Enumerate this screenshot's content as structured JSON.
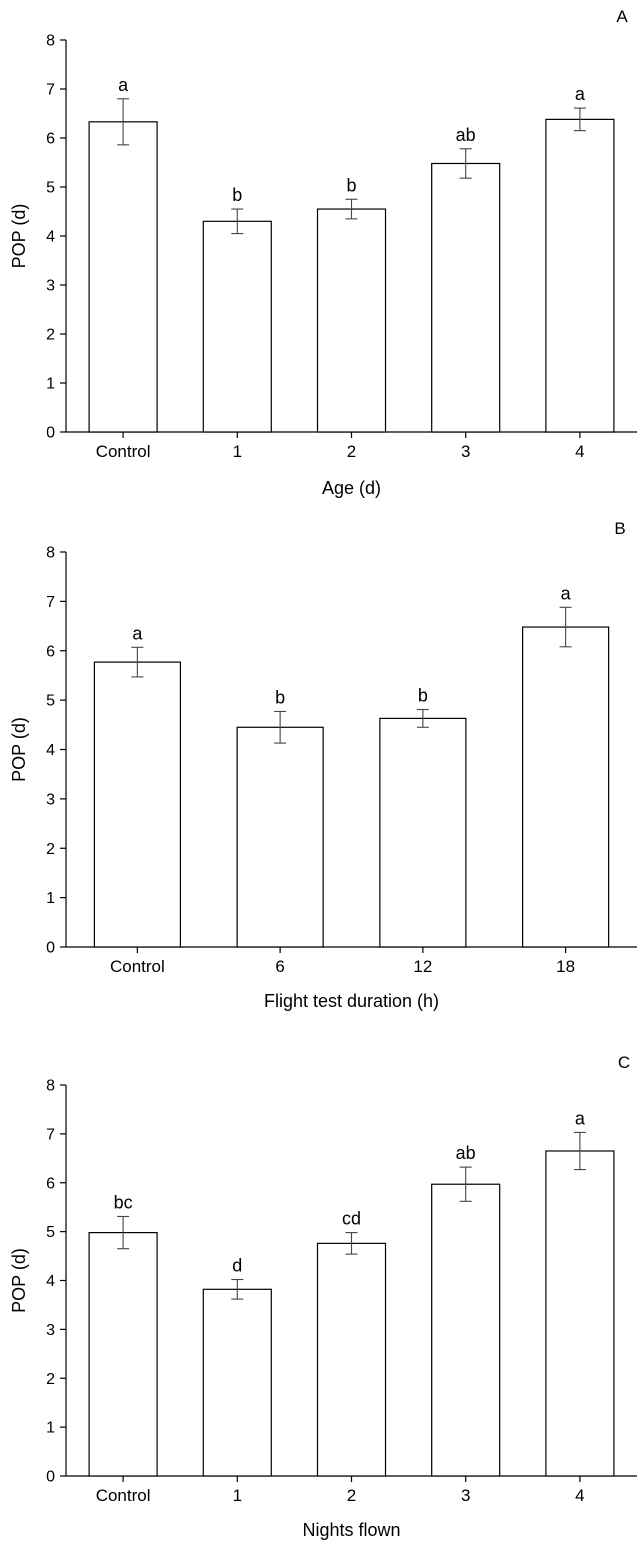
{
  "chart_data": [
    {
      "type": "bar",
      "panel_label": "A",
      "categories": [
        "Control",
        "1",
        "2",
        "3",
        "4"
      ],
      "values": [
        6.33,
        4.3,
        4.55,
        5.48,
        6.38
      ],
      "errors": [
        0.47,
        0.25,
        0.2,
        0.3,
        0.23
      ],
      "significance_letters": [
        "a",
        "b",
        "b",
        "ab",
        "a"
      ],
      "xlabel": "Age (d)",
      "ylabel": "POP (d)",
      "ylim": [
        0,
        8
      ],
      "yticks": [
        "0",
        "1",
        "2",
        "3",
        "4",
        "5",
        "6",
        "7",
        "8"
      ],
      "grid": false,
      "bar_color": "#ffffff",
      "edge_color": "#000000"
    },
    {
      "type": "bar",
      "panel_label": "B",
      "categories": [
        "Control",
        "6",
        "12",
        "18"
      ],
      "values": [
        5.77,
        4.45,
        4.63,
        6.48
      ],
      "errors": [
        0.3,
        0.32,
        0.18,
        0.4
      ],
      "significance_letters": [
        "a",
        "b",
        "b",
        "a"
      ],
      "xlabel": "Flight test duration (h)",
      "ylabel": "POP (d)",
      "ylim": [
        0,
        8
      ],
      "yticks": [
        "0",
        "1",
        "2",
        "3",
        "4",
        "5",
        "6",
        "7",
        "8"
      ],
      "grid": false,
      "bar_color": "#ffffff",
      "edge_color": "#000000"
    },
    {
      "type": "bar",
      "panel_label": "C",
      "categories": [
        "Control",
        "1",
        "2",
        "3",
        "4"
      ],
      "values": [
        4.98,
        3.82,
        4.76,
        5.97,
        6.65
      ],
      "errors": [
        0.33,
        0.2,
        0.22,
        0.35,
        0.38
      ],
      "significance_letters": [
        "bc",
        "d",
        "cd",
        "ab",
        "a"
      ],
      "xlabel": "Nights flown",
      "ylabel": "POP (d)",
      "ylim": [
        0,
        8
      ],
      "yticks": [
        "0",
        "1",
        "2",
        "3",
        "4",
        "5",
        "6",
        "7",
        "8"
      ],
      "grid": false,
      "bar_color": "#ffffff",
      "edge_color": "#000000"
    }
  ]
}
